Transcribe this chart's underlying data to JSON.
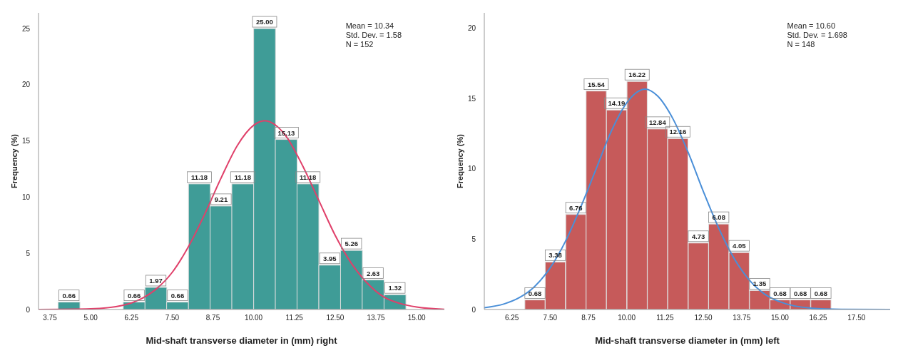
{
  "chart_data": [
    {
      "type": "histogram",
      "bins": [
        4.0,
        4.67,
        5.33,
        6.0,
        6.67,
        7.33,
        8.0,
        8.67,
        9.33,
        10.0,
        10.67,
        11.33,
        12.0,
        12.67,
        13.33,
        14.0,
        14.67
      ],
      "values": [
        0.66,
        0,
        0,
        0.66,
        1.97,
        0.66,
        11.18,
        9.21,
        11.18,
        25.0,
        15.13,
        11.18,
        3.95,
        5.26,
        2.63,
        1.32
      ],
      "value_labels": [
        "0.66",
        null,
        null,
        "0.66",
        "1.97",
        "0.66",
        "11.18",
        "9.21",
        "11.18",
        "25.00",
        "15.13",
        "11.18",
        "3.95",
        "5.26",
        "2.63",
        "1.32"
      ],
      "color": "#3f9c97",
      "series": [
        {
          "type": "line",
          "color": "#e0406a",
          "x": [
            3.4,
            5.0,
            6.0,
            6.5,
            7.0,
            7.5,
            8.0,
            8.5,
            9.0,
            9.5,
            10.0,
            10.34,
            10.5,
            11.0,
            11.5,
            12.0,
            12.5,
            13.0,
            13.5,
            14.0,
            14.5,
            15.0,
            15.85
          ],
          "values": [
            0,
            0.06,
            0.38,
            0.88,
            1.8,
            3.3,
            5.6,
            8.5,
            11.7,
            14.6,
            16.4,
            16.8,
            16.7,
            15.4,
            12.8,
            9.7,
            6.6,
            4.1,
            2.3,
            1.1,
            0.53,
            0.22,
            0.02
          ]
        }
      ],
      "xlabel": "Mid-shaft transverse diameter in (mm) right",
      "ylabel": "Frequency (%)",
      "xlim": [
        3.4,
        15.85
      ],
      "xticks": [
        3.75,
        {
          "value": 5,
          "label": "5.00"
        },
        6.25,
        {
          "value": 7.5,
          "label": "7.50"
        },
        8.75,
        {
          "value": 10,
          "label": "10.00"
        },
        11.25,
        {
          "value": 12.5,
          "label": "12.50"
        },
        13.75,
        {
          "value": 15,
          "label": "15.00"
        }
      ],
      "ylim": [
        0,
        26.4
      ],
      "yticks": [
        0,
        5,
        10,
        15,
        20,
        25
      ],
      "annotations": [
        "Mean = 10.34",
        "Std. Dev. = 1.58",
        "N = 152"
      ],
      "grid": false,
      "legend": false
    },
    {
      "type": "histogram",
      "bins": [
        6.67,
        7.33,
        8.0,
        8.67,
        9.33,
        10.0,
        10.67,
        11.33,
        12.0,
        12.67,
        13.33,
        14.0,
        14.67,
        15.33,
        16.0,
        16.67
      ],
      "values": [
        0.68,
        3.38,
        6.76,
        15.54,
        14.19,
        16.22,
        12.84,
        12.16,
        4.73,
        6.08,
        4.05,
        1.35,
        0.68,
        0.68,
        0.68
      ],
      "value_labels": [
        "0.68",
        "3.38",
        "6.76",
        "15.54",
        "14.19",
        "16.22",
        "12.84",
        "12.16",
        "4.73",
        "6.08",
        "4.05",
        "1.35",
        "0.68",
        "0.68",
        "0.68"
      ],
      "color": "#c65a5a",
      "series": [
        {
          "type": "line",
          "color": "#4a8fd8",
          "x": [
            5.35,
            6.0,
            6.5,
            7.0,
            7.5,
            8.0,
            8.5,
            9.0,
            9.5,
            10.0,
            10.6,
            11.0,
            11.5,
            12.0,
            12.5,
            13.0,
            13.5,
            14.0,
            14.5,
            15.0,
            16.0,
            17.0,
            18.6
          ],
          "values": [
            0.13,
            0.4,
            0.85,
            1.65,
            2.96,
            4.85,
            7.3,
            10.0,
            12.7,
            14.7,
            15.67,
            15.2,
            13.6,
            11.2,
            8.4,
            5.8,
            3.65,
            2.1,
            1.1,
            0.55,
            0.1,
            0.01,
            0
          ]
        }
      ],
      "xlabel": "Mid-shaft transverse diameter in (mm) left",
      "ylabel": "Frequency (%)",
      "xlim": [
        5.35,
        18.6
      ],
      "xticks": [
        6.25,
        {
          "value": 7.5,
          "label": "7.50"
        },
        8.75,
        {
          "value": 10,
          "label": "10.00"
        },
        11.25,
        {
          "value": 12.5,
          "label": "12.50"
        },
        13.75,
        {
          "value": 15,
          "label": "15.00"
        },
        16.25,
        {
          "value": 17.5,
          "label": "17.50"
        }
      ],
      "ylim": [
        0,
        21.1
      ],
      "yticks": [
        0,
        5,
        10,
        15,
        20
      ],
      "annotations": [
        "Mean = 10.60",
        "Std. Dev. = 1.698",
        "N = 148"
      ],
      "grid": false,
      "legend": false
    }
  ]
}
